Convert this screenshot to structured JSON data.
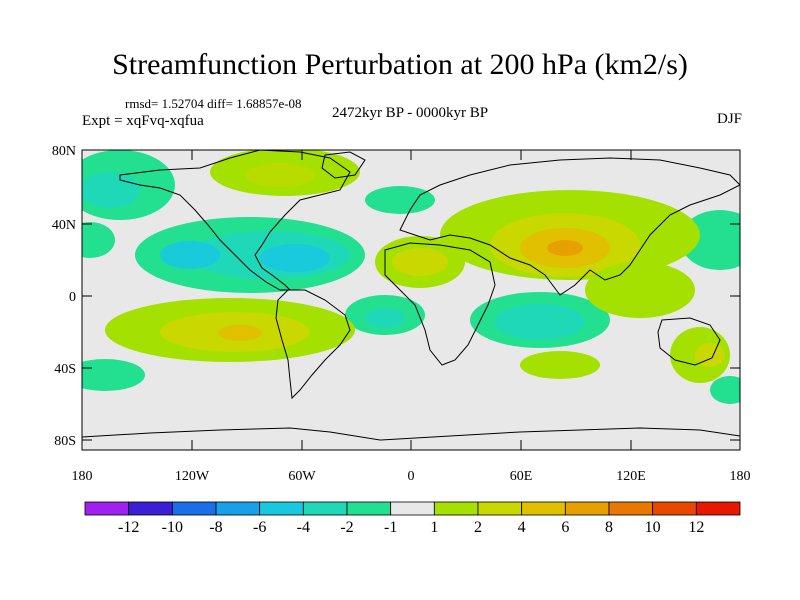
{
  "title": "Streamfunction Perturbation at 200 hPa (km2/s)",
  "stats": "rmsd= 1.52704 diff= 1.68857e-08",
  "experiment": "Expt = xqFvq-xqfua",
  "period": "2472kyr BP - 0000kyr BP",
  "season": "DJF",
  "lat_ticks": [
    "80N",
    "40N",
    "0",
    "40S",
    "80S"
  ],
  "lon_ticks": [
    "180",
    "120W",
    "60W",
    "0",
    "60E",
    "120E",
    "180"
  ],
  "colorbar": {
    "colors": [
      "#a020f0",
      "#3a1fd6",
      "#1a6fe8",
      "#18a0e8",
      "#18c8e0",
      "#1ed8b8",
      "#22e090",
      "#e8e8e8",
      "#a4e000",
      "#c8d800",
      "#e0c000",
      "#e8a000",
      "#e87800",
      "#e84800",
      "#e81800"
    ],
    "labels": [
      "-12",
      "-10",
      "-8",
      "-6",
      "-4",
      "-2",
      "-1",
      "1",
      "2",
      "4",
      "6",
      "8",
      "10",
      "12"
    ]
  }
}
